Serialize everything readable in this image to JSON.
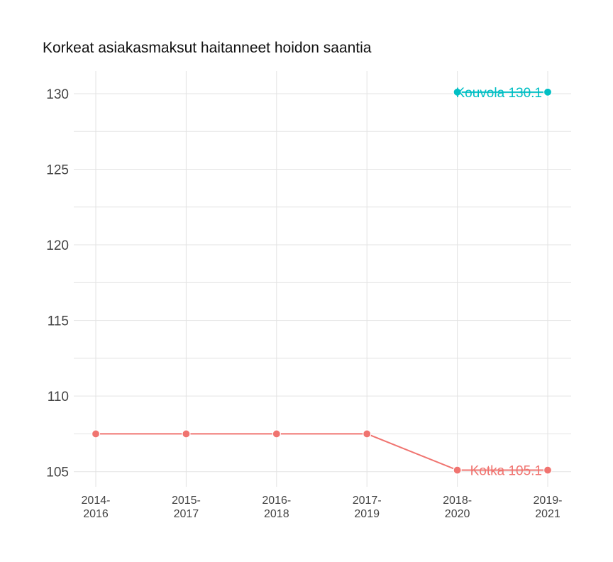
{
  "chart_data": {
    "type": "line",
    "title": "Korkeat asiakasmaksut haitanneet hoidon saantia",
    "xlabel": "",
    "ylabel": "",
    "categories": [
      [
        "2014-",
        "2016"
      ],
      [
        "2015-",
        "2017"
      ],
      [
        "2016-",
        "2018"
      ],
      [
        "2017-",
        "2019"
      ],
      [
        "2018-",
        "2020"
      ],
      [
        "2019-",
        "2021"
      ]
    ],
    "yticks": [
      "105",
      "110",
      "115",
      "120",
      "125",
      "130"
    ],
    "ylim": [
      104,
      131.5
    ],
    "grid": true,
    "series": [
      {
        "name": "Kotka",
        "color": "#f07470",
        "values": [
          107.5,
          107.5,
          107.5,
          107.5,
          105.1,
          105.1
        ],
        "end_label": "Kotka 105.1"
      },
      {
        "name": "Kouvola",
        "color": "#00bfc4",
        "values": [
          null,
          null,
          null,
          null,
          130.1,
          130.1
        ],
        "end_label": "Kouvola 130.1"
      }
    ]
  }
}
